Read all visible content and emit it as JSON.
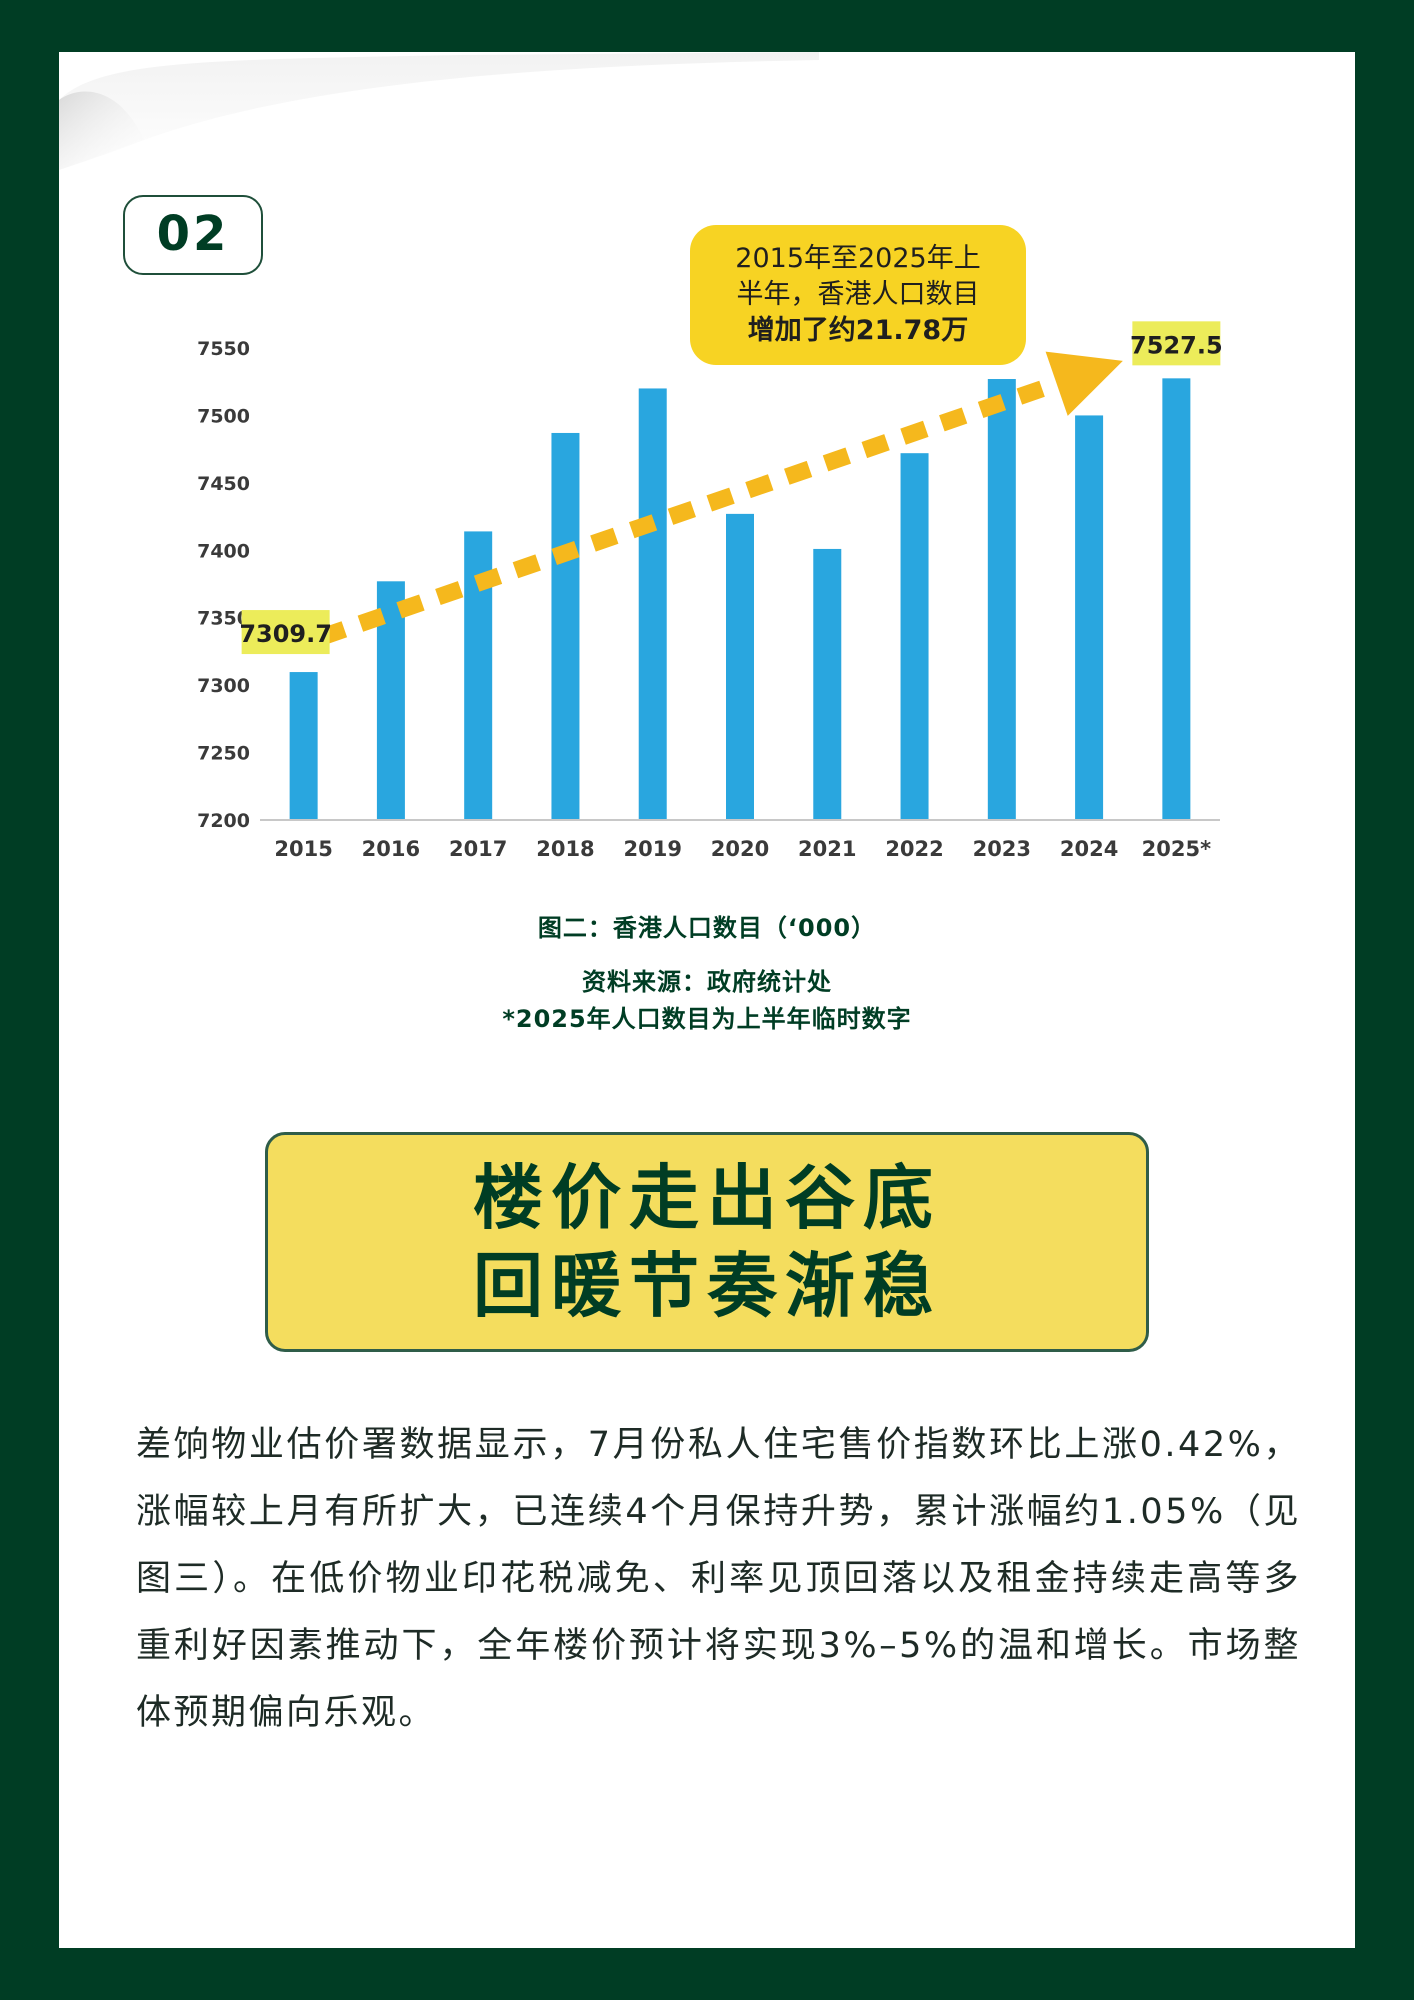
{
  "badge": "02",
  "chart_data": {
    "type": "bar",
    "categories": [
      "2015",
      "2016",
      "2017",
      "2018",
      "2019",
      "2020",
      "2021",
      "2022",
      "2023",
      "2024",
      "2025*"
    ],
    "values": [
      7309.7,
      7377,
      7414,
      7487,
      7520,
      7427,
      7401,
      7472,
      7527,
      7500,
      7527.5
    ],
    "ylim": [
      7200,
      7550
    ],
    "yticks": [
      7200,
      7250,
      7300,
      7350,
      7400,
      7450,
      7500,
      7550
    ],
    "bar_color": "#29a6df",
    "trend_color": "#f5b81d",
    "labels": {
      "start": "7309.7",
      "end": "7527.5"
    },
    "callout": {
      "line1": "2015年至2025年上",
      "line2": "半年，香港人口数目",
      "line3": "增加了约21.78万"
    },
    "grid": false
  },
  "captions": {
    "title": "图二：香港人口数目（‘000）",
    "source": "资料来源：政府统计处",
    "note": "*2025年人口数目为上半年临时数字"
  },
  "headline": {
    "line1": "楼价走出谷底",
    "line2": "回暖节奏渐稳"
  },
  "body": "差饷物业估价署数据显示，7月份私人住宅售价指数环比上涨0.42%，涨幅较上月有所扩大，已连续4个月保持升势，累计涨幅约1.05%（见图三）。在低价物业印花税减免、利率见顶回落以及租金持续走高等多重利好因素推动下，全年楼价预计将实现3%–5%的温和增长。市场整体预期偏向乐观。",
  "colors": {
    "frame": "#003d24",
    "accent_yellow": "#f4dd5e",
    "label_highlight": "#ecec5a"
  }
}
